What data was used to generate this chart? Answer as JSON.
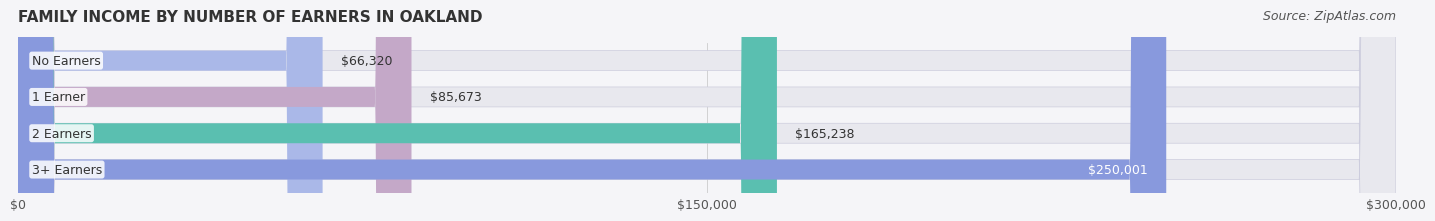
{
  "title": "FAMILY INCOME BY NUMBER OF EARNERS IN OAKLAND",
  "source": "Source: ZipAtlas.com",
  "categories": [
    "No Earners",
    "1 Earner",
    "2 Earners",
    "3+ Earners"
  ],
  "values": [
    66320,
    85673,
    165238,
    250001
  ],
  "value_labels": [
    "$66,320",
    "$85,673",
    "$165,238",
    "$250,001"
  ],
  "bar_colors": [
    "#aab8e8",
    "#c4a8c8",
    "#5abfb0",
    "#8899dd"
  ],
  "bar_bg_color": "#e8e8ee",
  "bar_label_colors": [
    "#555555",
    "#555555",
    "#555555",
    "#ffffff"
  ],
  "xlim": [
    0,
    300000
  ],
  "xtick_values": [
    0,
    150000,
    300000
  ],
  "xtick_labels": [
    "$0",
    "$150,000",
    "$300,000"
  ],
  "title_fontsize": 11,
  "source_fontsize": 9,
  "label_fontsize": 9,
  "value_fontsize": 9,
  "tick_fontsize": 9,
  "background_color": "#f5f5f8",
  "bar_bg_border_color": "#ccccdd"
}
